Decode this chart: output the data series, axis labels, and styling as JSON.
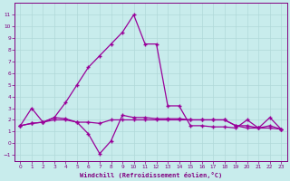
{
  "xlabel": "Windchill (Refroidissement éolien,°C)",
  "background_color": "#c8ecec",
  "grid_color": "#b0d8d8",
  "line_color": "#990099",
  "ylim": [
    -1.5,
    12
  ],
  "xlim": [
    -0.5,
    23.5
  ],
  "yticks": [
    -1,
    0,
    1,
    2,
    3,
    4,
    5,
    6,
    7,
    8,
    9,
    10,
    11
  ],
  "xticks": [
    0,
    1,
    2,
    3,
    4,
    5,
    6,
    7,
    8,
    9,
    10,
    11,
    12,
    13,
    14,
    15,
    16,
    17,
    18,
    19,
    20,
    21,
    22,
    23
  ],
  "x": [
    0,
    1,
    2,
    3,
    4,
    5,
    6,
    7,
    8,
    9,
    10,
    11,
    12,
    13,
    14,
    15,
    16,
    17,
    18,
    19,
    20,
    21,
    22,
    23
  ],
  "y_high": [
    1.5,
    1.7,
    1.8,
    2.2,
    3.5,
    5.0,
    6.5,
    7.5,
    8.5,
    9.5,
    11.0,
    8.5,
    8.5,
    3.2,
    3.2,
    1.5,
    1.5,
    1.4,
    1.4,
    1.3,
    2.0,
    1.3,
    1.3,
    1.2
  ],
  "y_dip": [
    1.5,
    3.0,
    1.8,
    2.2,
    2.1,
    1.8,
    0.8,
    -0.9,
    0.2,
    2.4,
    2.2,
    2.2,
    2.1,
    2.1,
    2.1,
    2.0,
    2.0,
    2.0,
    2.0,
    1.5,
    1.3,
    1.3,
    2.2,
    1.2
  ],
  "y_flat": [
    1.5,
    1.7,
    1.8,
    2.0,
    2.0,
    1.8,
    1.8,
    1.7,
    2.0,
    2.0,
    2.0,
    2.0,
    2.0,
    2.0,
    2.0,
    2.0,
    2.0,
    2.0,
    2.0,
    1.5,
    1.5,
    1.3,
    1.5,
    1.2
  ]
}
